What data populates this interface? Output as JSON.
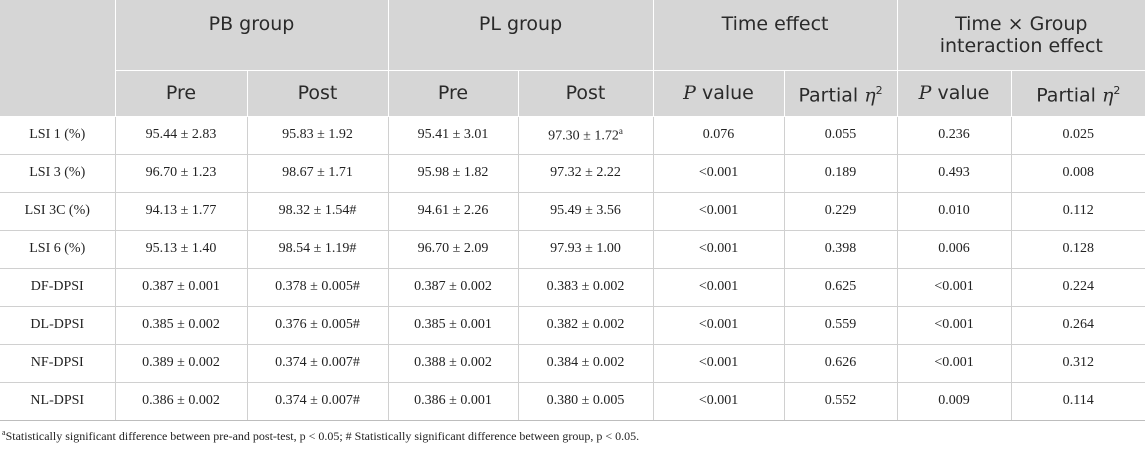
{
  "header": {
    "groups": [
      "PB group",
      "PL group",
      "Time effect",
      "Time × Group interaction effect"
    ],
    "pre": "Pre",
    "post": "Post",
    "p_italic": "P",
    "p_rest": " value",
    "partial": "Partial ",
    "eta": "η",
    "sq": "2"
  },
  "rows": [
    {
      "label": "LSI 1 (%)",
      "pb_pre": "95.44 ± 2.83",
      "pb_post": "95.83 ± 1.92",
      "pl_pre": "95.41 ± 3.01",
      "pl_post": "97.30 ± 1.72",
      "pl_post_sup": "a",
      "time_p": "0.076",
      "time_eta": "0.055",
      "int_p": "0.236",
      "int_eta": "0.025"
    },
    {
      "label": "LSI 3 (%)",
      "pb_pre": "96.70 ± 1.23",
      "pb_post": "98.67 ± 1.71",
      "pl_pre": "95.98 ± 1.82",
      "pl_post": "97.32 ± 2.22",
      "time_p": "<0.001",
      "time_eta": "0.189",
      "int_p": "0.493",
      "int_eta": "0.008"
    },
    {
      "label": "LSI 3C (%)",
      "pb_pre": "94.13 ± 1.77",
      "pb_post": "98.32 ± 1.54#",
      "pl_pre": "94.61 ± 2.26",
      "pl_post": "95.49 ± 3.56",
      "time_p": "<0.001",
      "time_eta": "0.229",
      "int_p": "0.010",
      "int_eta": "0.112"
    },
    {
      "label": "LSI 6 (%)",
      "pb_pre": "95.13 ± 1.40",
      "pb_post": "98.54 ± 1.19#",
      "pl_pre": "96.70 ± 2.09",
      "pl_post": "97.93 ± 1.00",
      "time_p": "<0.001",
      "time_eta": "0.398",
      "int_p": "0.006",
      "int_eta": "0.128"
    },
    {
      "label": "DF-DPSI",
      "pb_pre": "0.387 ± 0.001",
      "pb_post": "0.378 ± 0.005#",
      "pl_pre": "0.387 ± 0.002",
      "pl_post": "0.383 ± 0.002",
      "time_p": "<0.001",
      "time_eta": "0.625",
      "int_p": "<0.001",
      "int_eta": "0.224"
    },
    {
      "label": "DL-DPSI",
      "pb_pre": "0.385 ± 0.002",
      "pb_post": "0.376 ± 0.005#",
      "pl_pre": "0.385 ± 0.001",
      "pl_post": "0.382 ± 0.002",
      "time_p": "<0.001",
      "time_eta": "0.559",
      "int_p": "<0.001",
      "int_eta": "0.264"
    },
    {
      "label": "NF-DPSI",
      "pb_pre": "0.389 ± 0.002",
      "pb_post": "0.374 ± 0.007#",
      "pl_pre": "0.388 ± 0.002",
      "pl_post": "0.384 ± 0.002",
      "time_p": "<0.001",
      "time_eta": "0.626",
      "int_p": "<0.001",
      "int_eta": "0.312"
    },
    {
      "label": "NL-DPSI",
      "pb_pre": "0.386 ± 0.002",
      "pb_post": "0.374 ± 0.007#",
      "pl_pre": "0.386 ± 0.001",
      "pl_post": "0.380 ± 0.005",
      "time_p": "<0.001",
      "time_eta": "0.552",
      "int_p": "0.009",
      "int_eta": "0.114"
    }
  ],
  "footnote": {
    "marker": "a",
    "text": "Statistically significant difference between pre-and post-test, p < 0.05; # Statistically significant difference between group, p < 0.05."
  }
}
